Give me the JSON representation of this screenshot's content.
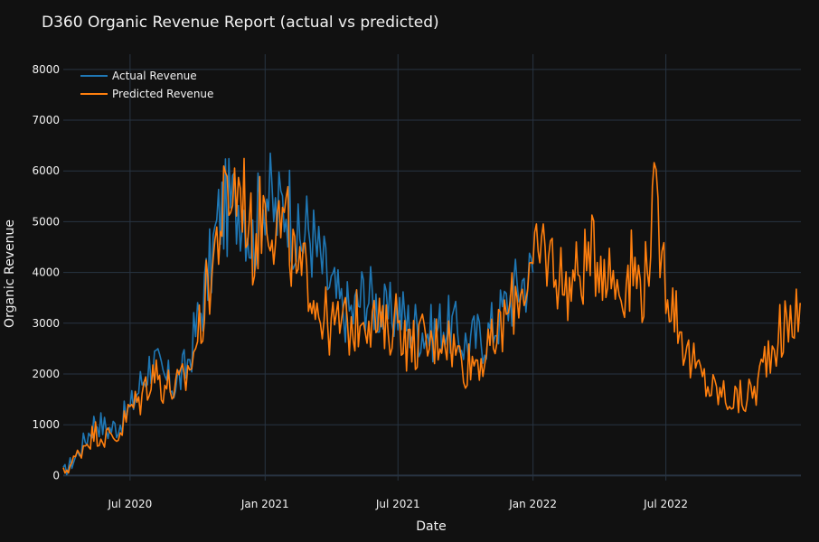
{
  "chart_data": {
    "type": "line",
    "title": "D360 Organic Revenue Report (actual vs predicted)",
    "xlabel": "Date",
    "ylabel": "Organic Revenue",
    "x_start": "2020-04-01",
    "x_end": "2023-01-01",
    "xlim": [
      "2020-04-01",
      "2023-01-01"
    ],
    "ylim": [
      -100,
      8300
    ],
    "yticks": [
      0,
      1000,
      2000,
      3000,
      4000,
      5000,
      6000,
      7000,
      8000
    ],
    "xticks": [
      {
        "date": "2020-07-01",
        "label": "Jul 2020"
      },
      {
        "date": "2021-01-01",
        "label": "Jan 2021"
      },
      {
        "date": "2021-07-01",
        "label": "Jul 2021"
      },
      {
        "date": "2022-01-01",
        "label": "Jan 2022"
      },
      {
        "date": "2022-07-01",
        "label": "Jul 2022"
      }
    ],
    "grid": true,
    "legend_position": "top-left",
    "series": [
      {
        "name": "Actual Revenue",
        "color": "#1f77b4",
        "points": [
          [
            "2020-04-01",
            60
          ],
          [
            "2020-04-15",
            300
          ],
          [
            "2020-05-01",
            700
          ],
          [
            "2020-05-15",
            1100
          ],
          [
            "2020-06-01",
            900
          ],
          [
            "2020-06-15",
            1000
          ],
          [
            "2020-07-01",
            1300
          ],
          [
            "2020-07-15",
            1800
          ],
          [
            "2020-08-01",
            2300
          ],
          [
            "2020-08-15",
            1900
          ],
          [
            "2020-09-01",
            1800
          ],
          [
            "2020-09-15",
            2100
          ],
          [
            "2020-10-01",
            3000
          ],
          [
            "2020-10-15",
            3900
          ],
          [
            "2020-11-01",
            5200
          ],
          [
            "2020-11-15",
            5300
          ],
          [
            "2020-12-01",
            5500
          ],
          [
            "2020-12-15",
            4600
          ],
          [
            "2021-01-01",
            5700
          ],
          [
            "2021-01-15",
            5100
          ],
          [
            "2021-02-01",
            5500
          ],
          [
            "2021-02-15",
            4500
          ],
          [
            "2021-03-01",
            4900
          ],
          [
            "2021-03-15",
            4300
          ],
          [
            "2021-04-01",
            3700
          ],
          [
            "2021-04-15",
            3300
          ],
          [
            "2021-05-01",
            3200
          ],
          [
            "2021-05-15",
            3600
          ],
          [
            "2021-06-01",
            3400
          ],
          [
            "2021-06-15",
            3100
          ],
          [
            "2021-07-01",
            3300
          ],
          [
            "2021-07-15",
            3000
          ],
          [
            "2021-08-01",
            2900
          ],
          [
            "2021-08-15",
            2800
          ],
          [
            "2021-09-01",
            3000
          ],
          [
            "2021-09-15",
            2900
          ],
          [
            "2021-10-01",
            2600
          ],
          [
            "2021-10-15",
            2700
          ],
          [
            "2021-11-01",
            2800
          ],
          [
            "2021-11-15",
            3100
          ],
          [
            "2021-12-01",
            3500
          ],
          [
            "2021-12-15",
            3800
          ],
          [
            "2022-01-01",
            4000
          ]
        ]
      },
      {
        "name": "Predicted Revenue",
        "color": "#ff7f0e",
        "points": [
          [
            "2020-04-01",
            50
          ],
          [
            "2020-04-15",
            280
          ],
          [
            "2020-05-01",
            650
          ],
          [
            "2020-05-15",
            850
          ],
          [
            "2020-06-01",
            750
          ],
          [
            "2020-06-15",
            800
          ],
          [
            "2020-07-01",
            1300
          ],
          [
            "2020-07-15",
            1500
          ],
          [
            "2020-08-01",
            2100
          ],
          [
            "2020-08-15",
            1800
          ],
          [
            "2020-09-01",
            1700
          ],
          [
            "2020-09-15",
            1900
          ],
          [
            "2020-10-01",
            2700
          ],
          [
            "2020-10-15",
            3700
          ],
          [
            "2020-11-01",
            5000
          ],
          [
            "2020-11-15",
            5600
          ],
          [
            "2020-12-01",
            5700
          ],
          [
            "2020-12-15",
            4500
          ],
          [
            "2021-01-01",
            5400
          ],
          [
            "2021-01-15",
            5000
          ],
          [
            "2021-02-01",
            4800
          ],
          [
            "2021-02-15",
            3800
          ],
          [
            "2021-03-01",
            4000
          ],
          [
            "2021-03-15",
            3300
          ],
          [
            "2021-04-01",
            2900
          ],
          [
            "2021-04-15",
            3000
          ],
          [
            "2021-05-01",
            2900
          ],
          [
            "2021-05-15",
            3300
          ],
          [
            "2021-06-01",
            3000
          ],
          [
            "2021-06-15",
            2800
          ],
          [
            "2021-07-01",
            3200
          ],
          [
            "2021-07-15",
            2500
          ],
          [
            "2021-08-01",
            2700
          ],
          [
            "2021-08-15",
            2500
          ],
          [
            "2021-09-01",
            2900
          ],
          [
            "2021-09-15",
            2500
          ],
          [
            "2021-10-01",
            2200
          ],
          [
            "2021-10-15",
            2300
          ],
          [
            "2021-11-01",
            2400
          ],
          [
            "2021-11-15",
            2800
          ],
          [
            "2021-12-01",
            3300
          ],
          [
            "2021-12-15",
            3700
          ],
          [
            "2022-01-01",
            4000
          ],
          [
            "2022-01-15",
            4500
          ],
          [
            "2022-02-01",
            4100
          ],
          [
            "2022-02-15",
            3700
          ],
          [
            "2022-03-01",
            3900
          ],
          [
            "2022-03-15",
            4200
          ],
          [
            "2022-04-01",
            4400
          ],
          [
            "2022-04-15",
            4000
          ],
          [
            "2022-05-01",
            3700
          ],
          [
            "2022-05-15",
            4100
          ],
          [
            "2022-06-01",
            3700
          ],
          [
            "2022-06-15",
            5300
          ],
          [
            "2022-07-01",
            3900
          ],
          [
            "2022-07-15",
            3200
          ],
          [
            "2022-08-01",
            2300
          ],
          [
            "2022-08-15",
            2000
          ],
          [
            "2022-09-01",
            1700
          ],
          [
            "2022-09-15",
            1600
          ],
          [
            "2022-10-01",
            1500
          ],
          [
            "2022-10-15",
            1500
          ],
          [
            "2022-11-01",
            1700
          ],
          [
            "2022-11-15",
            2400
          ],
          [
            "2022-12-01",
            2800
          ],
          [
            "2022-12-15",
            2900
          ],
          [
            "2022-12-31",
            3400
          ]
        ]
      }
    ]
  }
}
